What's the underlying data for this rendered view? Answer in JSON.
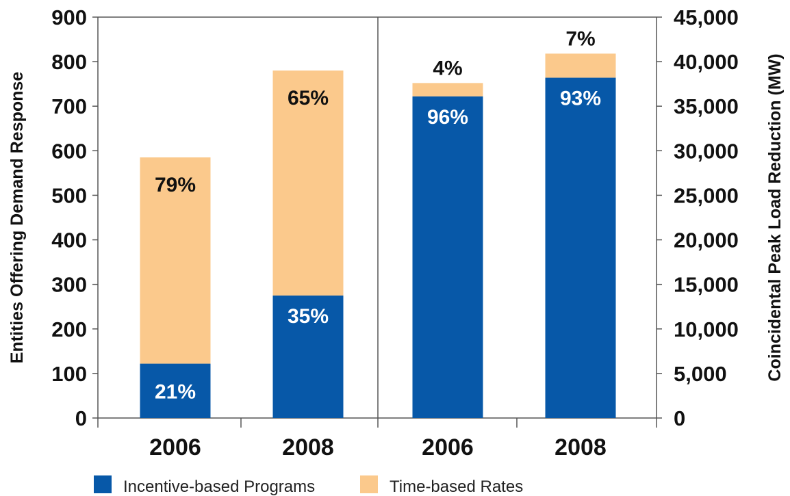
{
  "chart_data": {
    "type": "bar",
    "stacked": true,
    "categories": [
      "2006",
      "2008",
      "2006",
      "2008"
    ],
    "y_left": {
      "label": "Entities Offering Demand Response",
      "range": [
        0,
        900
      ],
      "ticks": [
        "0",
        "100",
        "200",
        "300",
        "400",
        "500",
        "600",
        "700",
        "800",
        "900"
      ]
    },
    "y_right": {
      "label": "Coincidental Peak Load Reduction (MW)",
      "range": [
        0,
        45000
      ],
      "ticks": [
        "0",
        "5,000",
        "10,000",
        "15,000",
        "20,000",
        "25,000",
        "30,000",
        "35,000",
        "40,000",
        "45,000"
      ]
    },
    "axis_for_category": [
      "left",
      "left",
      "right",
      "right"
    ],
    "series": [
      {
        "name": "Incentive-based Programs",
        "color": "#0758a8",
        "values": [
          122,
          275,
          36100,
          38200
        ],
        "labels": [
          "21%",
          "35%",
          "96%",
          "93%"
        ]
      },
      {
        "name": "Time-based Rates",
        "color": "#fbc98c",
        "values": [
          463,
          505,
          1500,
          2700
        ],
        "labels": [
          "79%",
          "65%",
          "4%",
          "7%"
        ]
      }
    ],
    "grid": false,
    "legend_position": "bottom-left"
  }
}
